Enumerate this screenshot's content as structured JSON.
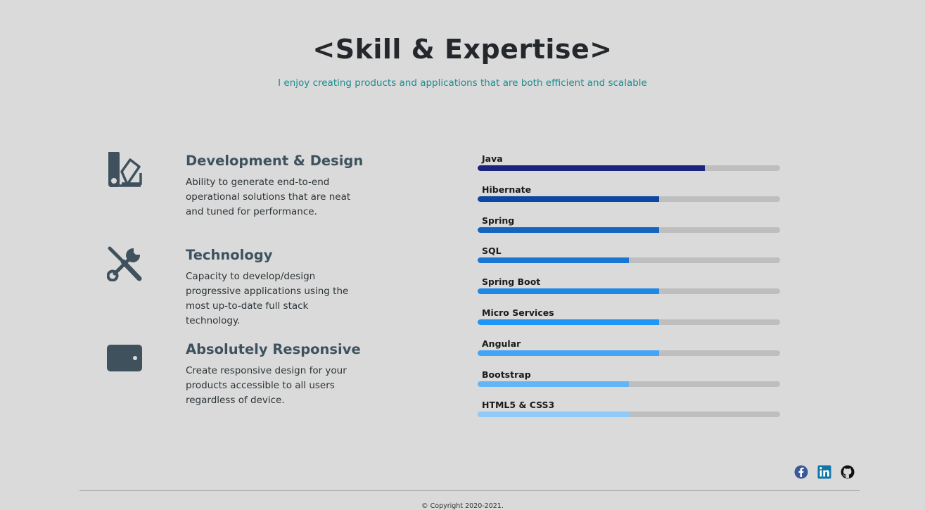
{
  "header": {
    "title": "<Skill & Expertise>",
    "subtitle": "I enjoy creating products and applications that are both efficient and scalable"
  },
  "features": [
    {
      "icon": "swatch-palette-icon",
      "title": "Development & Design",
      "description": "Ability to generate end-to-end operational solutions that are neat and tuned for performance."
    },
    {
      "icon": "tools-icon",
      "title": "Technology",
      "description": "Capacity to develop/design progressive applications using the most up-to-date full stack technology."
    },
    {
      "icon": "tablet-icon",
      "title": "Absolutely Responsive",
      "description": "Create responsive design for your products accessible to all users regardless of device."
    }
  ],
  "skills": [
    {
      "name": "Java",
      "percent": 75,
      "color": "#1a237e"
    },
    {
      "name": "Hibernate",
      "percent": 60,
      "color": "#0d47a1"
    },
    {
      "name": "Spring",
      "percent": 60,
      "color": "#1565c0"
    },
    {
      "name": "SQL",
      "percent": 50,
      "color": "#1976d2"
    },
    {
      "name": "Spring Boot",
      "percent": 60,
      "color": "#1e88e5"
    },
    {
      "name": "Micro Services",
      "percent": 60,
      "color": "#2196f3"
    },
    {
      "name": "Angular",
      "percent": 60,
      "color": "#42a5f5"
    },
    {
      "name": "Bootstrap",
      "percent": 50,
      "color": "#64b5f6"
    },
    {
      "name": "HTML5 & CSS3",
      "percent": 50,
      "color": "#90caf9"
    }
  ],
  "footer": {
    "social": [
      {
        "icon": "facebook-icon",
        "color": "#3b5998"
      },
      {
        "icon": "linkedin-icon",
        "color": "#0e76a8"
      },
      {
        "icon": "github-icon",
        "color": "#111111"
      }
    ],
    "copyright": "© Copyright 2020-2021."
  }
}
